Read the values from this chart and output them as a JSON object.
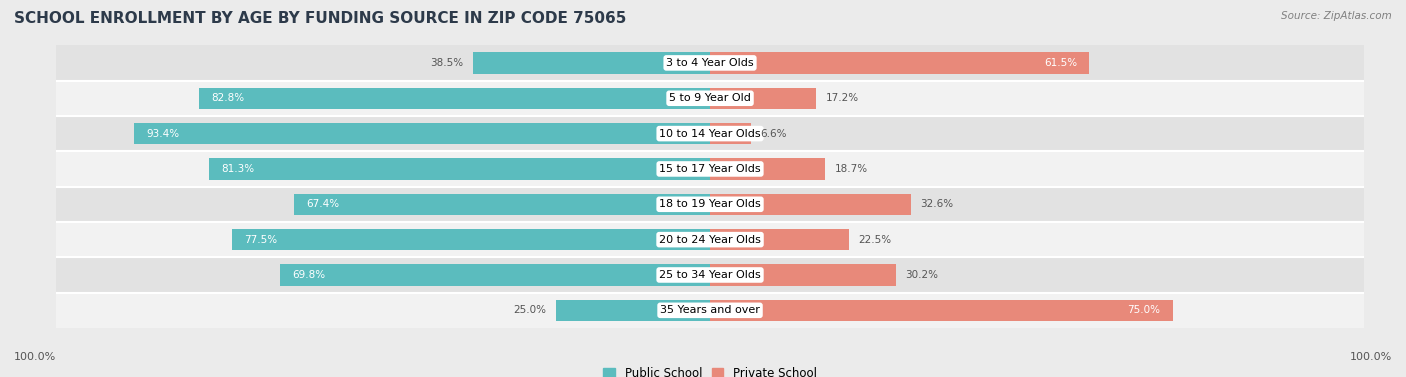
{
  "title": "SCHOOL ENROLLMENT BY AGE BY FUNDING SOURCE IN ZIP CODE 75065",
  "source": "Source: ZipAtlas.com",
  "categories": [
    "3 to 4 Year Olds",
    "5 to 9 Year Old",
    "10 to 14 Year Olds",
    "15 to 17 Year Olds",
    "18 to 19 Year Olds",
    "20 to 24 Year Olds",
    "25 to 34 Year Olds",
    "35 Years and over"
  ],
  "public_values": [
    38.5,
    82.8,
    93.4,
    81.3,
    67.4,
    77.5,
    69.8,
    25.0
  ],
  "private_values": [
    61.5,
    17.2,
    6.6,
    18.7,
    32.6,
    22.5,
    30.2,
    75.0
  ],
  "public_color": "#5bbcbe",
  "private_color": "#e8897a",
  "background_color": "#ebebeb",
  "row_bg_even": "#e2e2e2",
  "row_bg_odd": "#f2f2f2",
  "row_line_color": "#ffffff",
  "title_fontsize": 11,
  "label_fontsize": 8.0,
  "value_fontsize": 7.5,
  "legend_fontsize": 8.5,
  "footer_label": "100.0%",
  "bar_height": 0.6
}
